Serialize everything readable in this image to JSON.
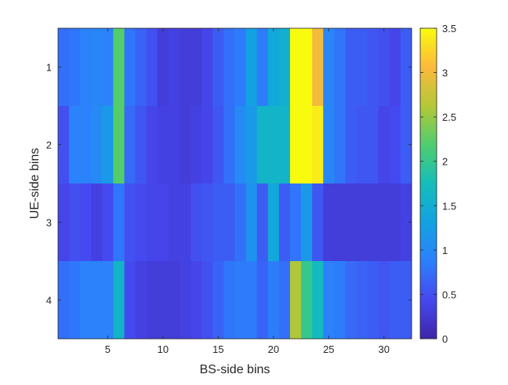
{
  "chart_data": {
    "type": "heatmap",
    "title": "",
    "xlabel": "BS-side bins",
    "ylabel": "UE-side bins",
    "x_ticks": [
      5,
      10,
      15,
      20,
      25,
      30
    ],
    "y_ticks": [
      1,
      2,
      3,
      4
    ],
    "xlim": [
      0.5,
      32.5
    ],
    "ylim": [
      0.5,
      4.5
    ],
    "y_reversed": true,
    "grid": false,
    "colormap": "parula",
    "colorbar": {
      "range": [
        0,
        3.5
      ],
      "ticks": [
        "0",
        "0.5",
        "1",
        "1.5",
        "2",
        "2.5",
        "3",
        "3.5"
      ]
    },
    "rows": [
      {
        "y": 1,
        "values": [
          0.75,
          0.8,
          0.9,
          0.95,
          0.9,
          2.2,
          0.8,
          0.65,
          0.5,
          0.3,
          0.35,
          0.3,
          0.3,
          0.4,
          0.6,
          0.75,
          0.85,
          1.3,
          0.85,
          1.4,
          1.5,
          3.5,
          3.5,
          3.0,
          0.95,
          0.8,
          0.6,
          0.6,
          0.55,
          0.5,
          0.4,
          0.6
        ]
      },
      {
        "y": 2,
        "values": [
          0.5,
          0.9,
          0.9,
          1.0,
          1.2,
          2.2,
          0.7,
          0.55,
          0.4,
          0.35,
          0.35,
          0.3,
          0.35,
          0.4,
          0.55,
          0.75,
          1.0,
          1.2,
          1.6,
          1.6,
          1.6,
          3.5,
          3.5,
          3.4,
          0.95,
          0.8,
          0.6,
          0.55,
          0.55,
          0.4,
          0.45,
          0.6
        ]
      },
      {
        "y": 3,
        "values": [
          0.4,
          0.5,
          0.45,
          0.35,
          0.45,
          0.8,
          0.5,
          0.45,
          0.4,
          0.4,
          0.35,
          0.35,
          0.5,
          0.55,
          0.6,
          0.6,
          0.75,
          1.1,
          0.6,
          1.4,
          0.6,
          0.8,
          1.2,
          0.55,
          0.3,
          0.3,
          0.3,
          0.3,
          0.3,
          0.3,
          0.3,
          0.35
        ]
      },
      {
        "y": 4,
        "values": [
          0.75,
          0.8,
          0.9,
          0.9,
          0.9,
          1.6,
          0.45,
          0.35,
          0.3,
          0.3,
          0.3,
          0.35,
          0.4,
          0.5,
          0.65,
          0.8,
          0.85,
          0.85,
          0.65,
          0.85,
          0.75,
          2.6,
          2.0,
          1.7,
          0.9,
          0.85,
          0.7,
          0.65,
          0.6,
          0.55,
          0.6,
          0.6
        ]
      }
    ]
  }
}
